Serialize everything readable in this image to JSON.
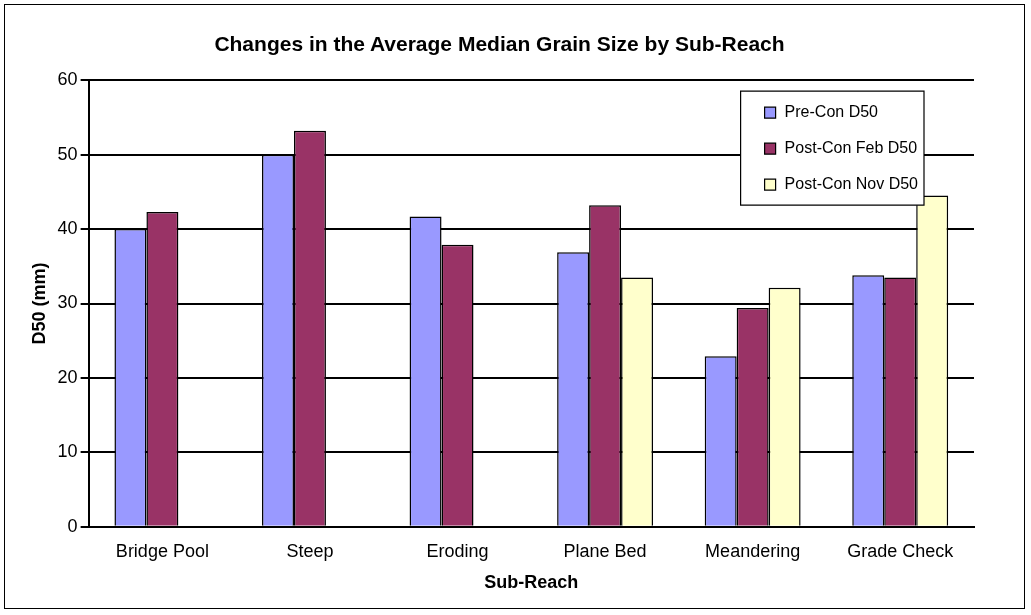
{
  "chart_data": {
    "type": "bar",
    "title": "Changes in the Average Median Grain Size by Sub-Reach",
    "xlabel": "Sub-Reach",
    "ylabel": "D50 (mm)",
    "categories": [
      "Bridge Pool",
      "Steep",
      "Eroding",
      "Plane Bed",
      "Meandering",
      "Grade Check"
    ],
    "series": [
      {
        "name": "Pre-Con D50",
        "color": "#9999ff",
        "values": [
          40,
          50,
          41.7,
          36.9,
          22.9,
          33.8
        ]
      },
      {
        "name": "Post-Con Feb D50",
        "color": "#993366",
        "values": [
          42.3,
          53.2,
          37.9,
          43.2,
          29.4,
          33.5
        ]
      },
      {
        "name": "Post-Con Nov D50",
        "color": "#ffffcc",
        "values": [
          null,
          null,
          null,
          33.5,
          32.1,
          44.5
        ]
      }
    ],
    "ylim": [
      0,
      60
    ],
    "yticks": [
      0,
      10,
      20,
      30,
      40,
      50,
      60
    ],
    "grid": "y",
    "legend": "top right"
  }
}
